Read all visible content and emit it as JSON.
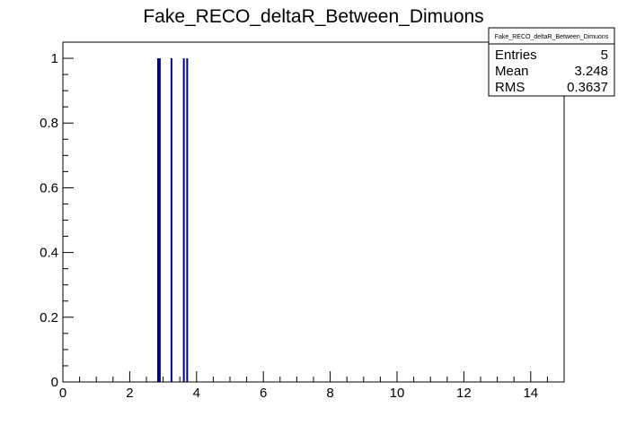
{
  "chart_data": {
    "type": "bar",
    "title": "Fake_RECO_deltaR_Between_Dimuons",
    "xlabel": "",
    "ylabel": "",
    "xlim": [
      0,
      15
    ],
    "ylim": [
      0,
      1.05
    ],
    "x_ticks": [
      0,
      2,
      4,
      6,
      8,
      10,
      12,
      14
    ],
    "y_ticks": [
      0,
      0.2,
      0.4,
      0.6,
      0.8,
      1
    ],
    "y_tick_labels": [
      "0",
      "0.2",
      "0.4",
      "0.6",
      "0.8",
      "1"
    ],
    "grid": false,
    "line_color": "#000080",
    "entries_x": [
      2.85,
      2.9,
      3.25,
      3.62,
      3.72
    ],
    "values": [
      1,
      1,
      1,
      1,
      1
    ]
  },
  "stats_box": {
    "title": "Fake_RECO_deltaR_Between_Dimuons",
    "rows": [
      {
        "label": "Entries",
        "value": "5"
      },
      {
        "label": "Mean",
        "value": "3.248"
      },
      {
        "label": "RMS",
        "value": "0.3637"
      }
    ]
  }
}
